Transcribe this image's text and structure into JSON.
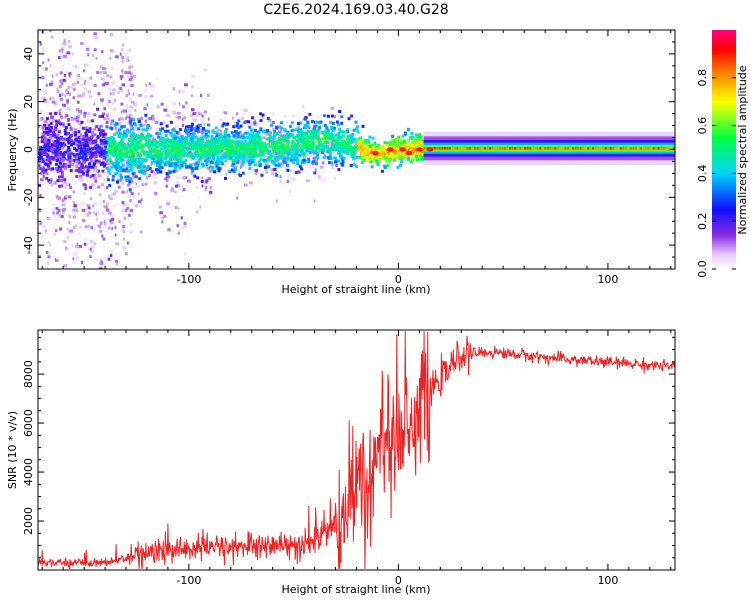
{
  "title": "C2E6.2024.169.03.40.G28",
  "chart_data": [
    {
      "type": "heatmap",
      "name": "spectrogram",
      "xlabel": "Height of straight line (km)",
      "ylabel": "Frequency (Hz)",
      "xlim": [
        -172,
        132
      ],
      "ylim": [
        -50,
        50
      ],
      "xticks": [
        -100,
        0,
        100
      ],
      "yticks": [
        -40,
        -20,
        0,
        20,
        40
      ],
      "colorbar": {
        "label": "Normalized spectral amplitude",
        "range": [
          0,
          1
        ],
        "ticks": [
          0.0,
          0.2,
          0.4,
          0.6,
          0.8
        ],
        "tick_labels": [
          "0.0",
          "0.2",
          "0.4",
          "0.6",
          "0.8"
        ],
        "colormap": [
          "#ffffff",
          "#e6ccff",
          "#8a2be2",
          "#1010ff",
          "#00d5ff",
          "#00ff40",
          "#ffff00",
          "#ff8000",
          "#ff0000",
          "#ff0080"
        ]
      },
      "ridge": [
        {
          "x": -172,
          "y": 0
        },
        {
          "x": -100,
          "y": 0
        },
        {
          "x": -60,
          "y": 1
        },
        {
          "x": -35,
          "y": 4
        },
        {
          "x": -20,
          "y": 1
        },
        {
          "x": -12,
          "y": -2
        },
        {
          "x": 0,
          "y": 0
        },
        {
          "x": 15,
          "y": 0.5
        },
        {
          "x": 132,
          "y": 0.5
        }
      ]
    },
    {
      "type": "line",
      "name": "snr",
      "xlabel": "Height of straight line (km)",
      "ylabel": "SNR (10 * v/v)",
      "xlim": [
        -172,
        132
      ],
      "ylim": [
        0,
        9800
      ],
      "xticks": [
        -100,
        0,
        100
      ],
      "yticks": [
        2000,
        4000,
        6000,
        8000
      ],
      "line_color": "#ee2222",
      "trend": [
        {
          "x": -172,
          "y": 300
        },
        {
          "x": -140,
          "y": 300
        },
        {
          "x": -120,
          "y": 700
        },
        {
          "x": -100,
          "y": 900
        },
        {
          "x": -60,
          "y": 1000
        },
        {
          "x": -40,
          "y": 1100
        },
        {
          "x": -30,
          "y": 1800
        },
        {
          "x": -20,
          "y": 3500
        },
        {
          "x": -10,
          "y": 5000
        },
        {
          "x": 0,
          "y": 6000
        },
        {
          "x": 10,
          "y": 6800
        },
        {
          "x": 20,
          "y": 7800
        },
        {
          "x": 30,
          "y": 8800
        },
        {
          "x": 45,
          "y": 8900
        },
        {
          "x": 80,
          "y": 8600
        },
        {
          "x": 132,
          "y": 8300
        }
      ]
    }
  ]
}
